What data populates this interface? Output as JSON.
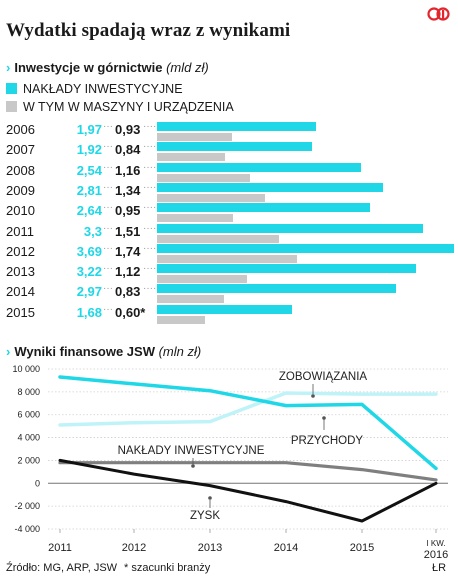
{
  "title": "Wydatki spadają wraz z wynikami",
  "logo_text": "CP",
  "colors": {
    "cyan": "#1fd7e6",
    "light_cyan": "#bff3f7",
    "gray": "#c8c8c8",
    "dark_gray": "#7f7f7f",
    "black": "#111111",
    "logo_red": "#e3262d"
  },
  "chart_data": [
    {
      "type": "bar",
      "title": "Inwestycje w górnictwie",
      "unit": "(mld zł)",
      "categories": [
        "2006",
        "2007",
        "2008",
        "2009",
        "2010",
        "2011",
        "2012",
        "2013",
        "2014",
        "2015"
      ],
      "series": [
        {
          "name": "NAKŁADY INWESTYCYJNE",
          "values": [
            1.97,
            1.92,
            2.54,
            2.81,
            2.64,
            3.3,
            3.69,
            3.22,
            2.97,
            1.68
          ]
        },
        {
          "name": "W TYM W MASZYNY I URZĄDZENIA",
          "values": [
            0.93,
            0.84,
            1.16,
            1.34,
            0.95,
            1.51,
            1.74,
            1.12,
            0.83,
            0.6
          ]
        }
      ],
      "labels_primary": [
        "1,97",
        "1,92",
        "2,54",
        "2,81",
        "2,64",
        "3,3",
        "3,69",
        "3,22",
        "2,97",
        "1,68"
      ],
      "labels_secondary": [
        "0,93",
        "0,84",
        "1,16",
        "1,34",
        "0,95",
        "1,51",
        "1,74",
        "1,12",
        "0,83",
        "0,60*"
      ]
    },
    {
      "type": "line",
      "title": "Wyniki finansowe JSW",
      "unit": "(mln zł)",
      "x_ticks": [
        "2011",
        "2012",
        "2013",
        "2014",
        "2015",
        "I KW.",
        "2016"
      ],
      "ylim": [
        -4000,
        10000
      ],
      "y_ticks": [
        "10 000",
        "8 000",
        "6 000",
        "4 000",
        "2 000",
        "0",
        "-2 000",
        "-4 000"
      ],
      "series": [
        {
          "name": "PRZYCHODY",
          "x": [
            2011,
            2012,
            2013,
            2014,
            2015,
            2016.1
          ],
          "y": [
            9300,
            8700,
            8100,
            6800,
            6900,
            1300
          ]
        },
        {
          "name": "ZOBOWIĄZANIA",
          "x": [
            2011,
            2012,
            2013,
            2014,
            2015,
            2016.1
          ],
          "y": [
            5100,
            5300,
            5400,
            7900,
            7800,
            7800
          ]
        },
        {
          "name": "NAKŁADY INWESTYCYJNE",
          "x": [
            2011,
            2012,
            2013,
            2014,
            2015,
            2016.1
          ],
          "y": [
            1800,
            1800,
            1800,
            1800,
            1200,
            300
          ]
        },
        {
          "name": "ZYSK",
          "x": [
            2011,
            2012,
            2013,
            2014,
            2015,
            2016.1
          ],
          "y": [
            2000,
            800,
            -200,
            -1600,
            -3300,
            0
          ]
        }
      ]
    }
  ],
  "footer": {
    "source": "Źródło: MG, ARP, JSW",
    "note": "* szacunki branży",
    "author": "ŁR"
  }
}
